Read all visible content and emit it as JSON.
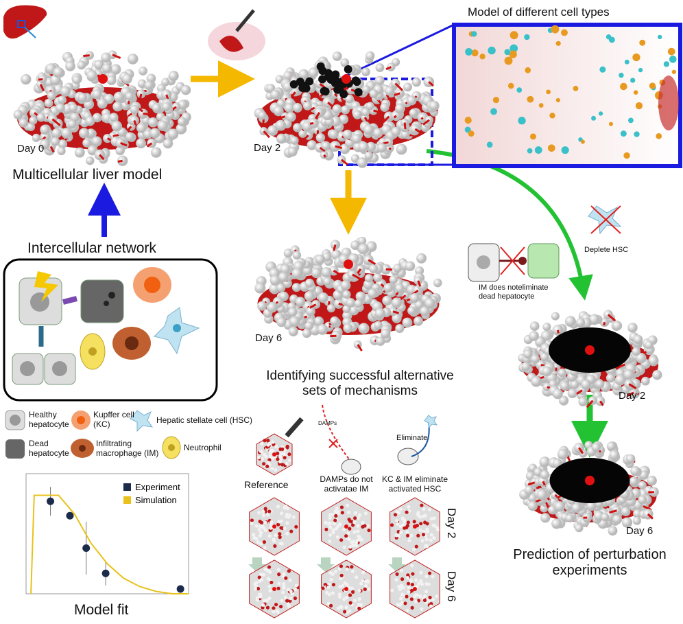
{
  "figure": {
    "top": {
      "model_title": "Model of different cell types",
      "day0": "Day 0",
      "day2": "Day 2",
      "liver_model": "Multicellular liver model"
    },
    "middle": {
      "day6": "Day 6",
      "caption": "Identifying successful alternative sets of mechanisms"
    },
    "network": {
      "title": "Intercellular network"
    },
    "legend": {
      "healthy": "Healthy hepatocyte",
      "kupffer": "Kupffer cell (KC)",
      "hsc": "Hepatic stellate cell (HSC)",
      "dead": "Dead hepatocyte",
      "im": "Infiltrating macrophage (IM)",
      "neutrophil": "Neutrophil"
    },
    "alternatives": {
      "reference": "Reference",
      "damps": "DAMPs",
      "damps_note": "DAMPs do not activatae IM",
      "eliminate": "Eliminate",
      "eliminate_note": "KC & IM eliminate activated HSC",
      "day2": "Day 2",
      "day6": "Day 6"
    },
    "prediction": {
      "deplete": "Deplete HSC",
      "im_note": "IM does noteliminate dead hepatocyte",
      "day2": "Day 2",
      "day6": "Day 6",
      "caption": "Prediction of perturbation experiments"
    }
  },
  "chart_data": {
    "type": "line",
    "title": "Model fit",
    "xlim": [
      0,
      1
    ],
    "ylim": [
      0,
      1
    ],
    "series": [
      {
        "name": "Experiment",
        "color": "#1c2b4a",
        "x": [
          0.15,
          0.27,
          0.37,
          0.49,
          0.95
        ],
        "values": [
          0.77,
          0.65,
          0.38,
          0.17,
          0.04
        ],
        "errors": [
          0.12,
          0.03,
          0.22,
          0.1,
          0.01
        ]
      },
      {
        "name": "Simulation",
        "color": "#e8c21a",
        "x": [
          0.03,
          0.05,
          0.2,
          0.3,
          0.4,
          0.5,
          0.6,
          0.7,
          0.8,
          0.9,
          1.0
        ],
        "values": [
          0,
          0.82,
          0.82,
          0.66,
          0.42,
          0.25,
          0.13,
          0.06,
          0.02,
          0,
          0
        ]
      }
    ]
  }
}
